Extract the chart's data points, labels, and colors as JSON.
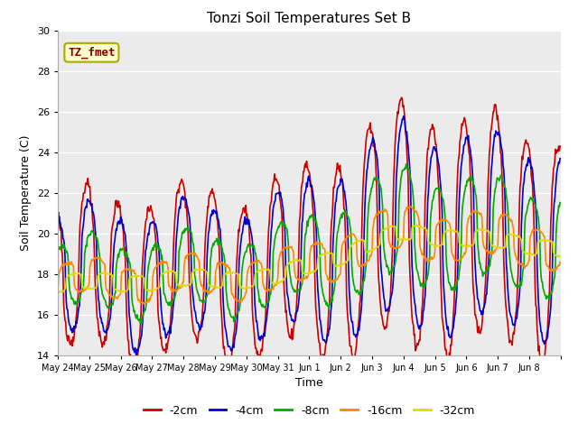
{
  "title": "Tonzi Soil Temperatures Set B",
  "xlabel": "Time",
  "ylabel": "Soil Temperature (C)",
  "ylim": [
    14,
    30
  ],
  "yticks": [
    14,
    16,
    18,
    20,
    22,
    24,
    26,
    28,
    30
  ],
  "xlabels": [
    "May 24",
    "May 25",
    "May 26",
    "May 27",
    "May 28",
    "May 29",
    "May 30",
    "May 31",
    "Jun 1",
    "Jun 2",
    "Jun 3",
    "Jun 4",
    "Jun 5",
    "Jun 6",
    "Jun 7",
    "Jun 8"
  ],
  "colors": {
    "-2cm": "#cc0000",
    "-4cm": "#0000cc",
    "-8cm": "#00aa00",
    "-16cm": "#ff8800",
    "-32cm": "#dddd00"
  },
  "legend_label": "TZ_fmet",
  "legend_box_facecolor": "#ffffcc",
  "legend_box_edgecolor": "#aaaa00",
  "legend_text_color": "#880000",
  "bg_color": "#ebebeb",
  "line_width": 1.2,
  "n_days": 16,
  "pts_per_day": 48
}
